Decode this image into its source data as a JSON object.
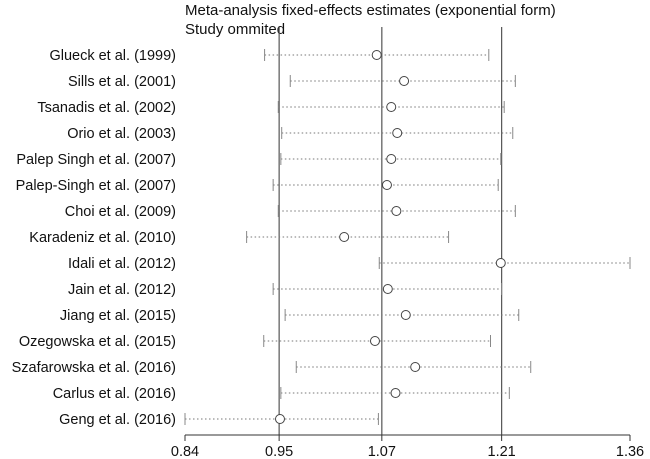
{
  "chart_data": {
    "type": "forest",
    "title": "Meta-analysis fixed-effects estimates (exponential form)",
    "subtitle": "Study ommited",
    "xlim": [
      0.84,
      1.36
    ],
    "x_ticks": [
      0.84,
      0.95,
      1.07,
      1.21,
      1.36
    ],
    "reference_lines": [
      0.95,
      1.07,
      1.21
    ],
    "studies": [
      {
        "label": "Glueck et al. (1999)",
        "estimate": 1.064,
        "ci_low": 0.933,
        "ci_high": 1.195
      },
      {
        "label": "Sills et al. (2001)",
        "estimate": 1.096,
        "ci_low": 0.963,
        "ci_high": 1.226
      },
      {
        "label": "Tsanadis et al. (2002)",
        "estimate": 1.081,
        "ci_low": 0.949,
        "ci_high": 1.213
      },
      {
        "label": "Orio et al. (2003)",
        "estimate": 1.088,
        "ci_low": 0.953,
        "ci_high": 1.223
      },
      {
        "label": "Palep Singh et al. (2007)",
        "estimate": 1.081,
        "ci_low": 0.952,
        "ci_high": 1.209
      },
      {
        "label": "Palep-Singh et al. (2007)",
        "estimate": 1.076,
        "ci_low": 0.943,
        "ci_high": 1.206
      },
      {
        "label": "Choi et al. (2009)",
        "estimate": 1.087,
        "ci_low": 0.949,
        "ci_high": 1.226
      },
      {
        "label": "Karadeniz et al. (2010)",
        "estimate": 1.026,
        "ci_low": 0.912,
        "ci_high": 1.148
      },
      {
        "label": "Idali et al. (2012)",
        "estimate": 1.209,
        "ci_low": 1.067,
        "ci_high": 1.36
      },
      {
        "label": "Jain et al. (2012)",
        "estimate": 1.077,
        "ci_low": 0.943,
        "ci_high": 1.21
      },
      {
        "label": "Jiang et al. (2015)",
        "estimate": 1.098,
        "ci_low": 0.957,
        "ci_high": 1.23
      },
      {
        "label": "Ozegowska et al. (2015)",
        "estimate": 1.062,
        "ci_low": 0.932,
        "ci_high": 1.197
      },
      {
        "label": "Szafarowska et al. (2016)",
        "estimate": 1.109,
        "ci_low": 0.97,
        "ci_high": 1.244
      },
      {
        "label": "Carlus et al. (2016)",
        "estimate": 1.086,
        "ci_low": 0.952,
        "ci_high": 1.219
      },
      {
        "label": "Geng et al. (2016)",
        "estimate": 0.951,
        "ci_low": 0.84,
        "ci_high": 1.066
      }
    ]
  }
}
